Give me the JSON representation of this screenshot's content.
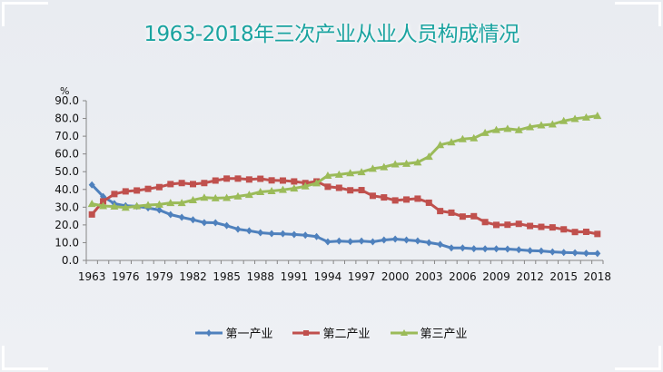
{
  "chart_data": {
    "type": "line",
    "title": "1963-2018年三次产业从业人员构成情况",
    "ylabel": "%",
    "xlabel": "",
    "ylim": [
      0,
      90
    ],
    "yticks": [
      "0.0",
      "10.0",
      "20.0",
      "30.0",
      "40.0",
      "50.0",
      "60.0",
      "70.0",
      "80.0",
      "90.0"
    ],
    "categories": [
      "1963",
      "1970",
      "1975",
      "1976",
      "1977",
      "1978",
      "1979",
      "1980",
      "1981",
      "1982",
      "1983",
      "1984",
      "1985",
      "1986",
      "1987",
      "1988",
      "1989",
      "1990",
      "1991",
      "1992",
      "1993",
      "1994",
      "1995",
      "1996",
      "1997",
      "1998",
      "1999",
      "2000",
      "2001",
      "2002",
      "2003",
      "2004",
      "2005",
      "2006",
      "2007",
      "2008",
      "2009",
      "2010",
      "2011",
      "2012",
      "2013",
      "2014",
      "2015",
      "2016",
      "2017",
      "2018"
    ],
    "xtick_labels": [
      "1963",
      "1976",
      "1979",
      "1982",
      "1985",
      "1988",
      "1991",
      "1994",
      "1997",
      "2000",
      "2003",
      "2006",
      "2009",
      "2012",
      "2015",
      "2018"
    ],
    "legend_position": "bottom",
    "series": [
      {
        "name": "第一产业",
        "color": "#4f81bd",
        "marker": "diamond",
        "values": [
          42.6,
          36.0,
          32.0,
          30.8,
          30.5,
          29.6,
          28.4,
          25.8,
          24.3,
          22.9,
          21.3,
          21.2,
          19.6,
          17.6,
          16.7,
          15.6,
          15.1,
          15.0,
          14.6,
          14.2,
          13.4,
          10.5,
          10.9,
          10.6,
          10.9,
          10.5,
          11.5,
          12.0,
          11.5,
          11.0,
          10.0,
          9.0,
          7.0,
          7.0,
          6.6,
          6.5,
          6.5,
          6.4,
          6.0,
          5.5,
          5.3,
          4.8,
          4.5,
          4.3,
          4.0,
          3.9
        ]
      },
      {
        "name": "第二产业",
        "color": "#c0504d",
        "marker": "square",
        "values": [
          25.9,
          33.3,
          37.4,
          38.9,
          39.4,
          40.3,
          41.3,
          43.0,
          43.6,
          43.0,
          43.6,
          45.0,
          46.1,
          46.1,
          45.6,
          46.0,
          45.1,
          45.0,
          44.5,
          43.6,
          44.5,
          41.5,
          40.9,
          39.5,
          39.6,
          36.4,
          35.5,
          33.8,
          34.3,
          34.8,
          32.5,
          27.8,
          26.9,
          24.7,
          24.9,
          21.6,
          20.0,
          20.1,
          20.6,
          19.4,
          18.9,
          18.6,
          17.5,
          16.0,
          16.1,
          14.9
        ]
      },
      {
        "name": "第三产业",
        "color": "#9bbb59",
        "marker": "triangle",
        "values": [
          31.9,
          30.7,
          30.4,
          29.8,
          30.6,
          31.2,
          31.5,
          32.4,
          32.4,
          34.0,
          35.4,
          35.1,
          35.3,
          36.1,
          37.0,
          38.6,
          39.1,
          39.8,
          40.6,
          41.8,
          43.5,
          47.8,
          48.4,
          49.2,
          49.8,
          51.7,
          52.6,
          54.2,
          54.5,
          55.3,
          58.5,
          65.1,
          66.6,
          68.4,
          68.9,
          71.9,
          73.6,
          74.2,
          73.5,
          75.2,
          76.2,
          76.7,
          78.6,
          79.8,
          80.6,
          81.5
        ]
      }
    ]
  }
}
